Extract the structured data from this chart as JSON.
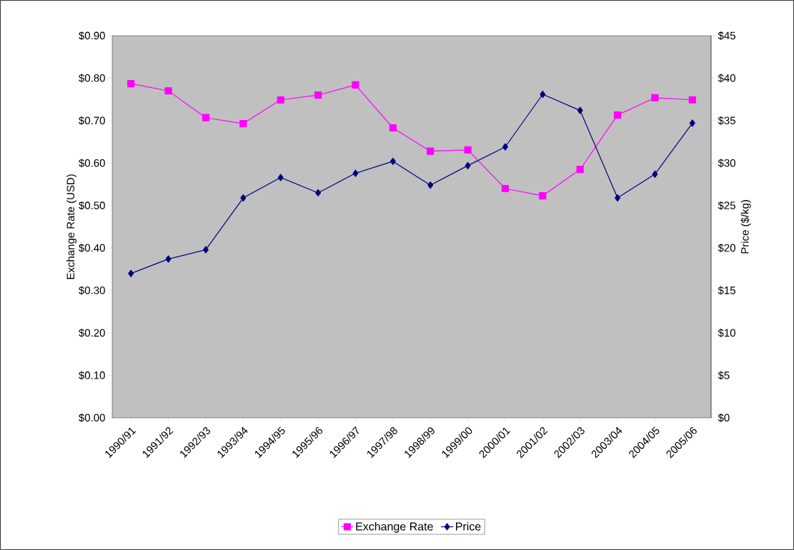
{
  "chart_data": {
    "type": "line",
    "categories": [
      "1990/91",
      "1991/92",
      "1992/93",
      "1993/94",
      "1994/95",
      "1995/96",
      "1996/97",
      "1997/98",
      "1998/99",
      "1999/00",
      "2000/01",
      "2001/02",
      "2002/03",
      "2003/04",
      "2004/05",
      "2005/06"
    ],
    "series": [
      {
        "name": "Exchange Rate",
        "color": "#ff00ff",
        "marker": "square",
        "values": [
          0.787,
          0.77,
          0.707,
          0.693,
          0.749,
          0.76,
          0.784,
          0.683,
          0.628,
          0.631,
          0.54,
          0.523,
          0.585,
          0.713,
          0.754,
          0.749
        ]
      },
      {
        "name": "Price",
        "color": "#000080",
        "marker": "diamond",
        "axis": "y2",
        "values": [
          17.0,
          18.7,
          19.8,
          25.9,
          28.3,
          26.5,
          28.8,
          30.2,
          27.4,
          29.7,
          31.9,
          38.1,
          36.2,
          25.9,
          28.7,
          34.7
        ]
      }
    ],
    "ylabel": "Exchange Rate (USD)",
    "y2label": "Price ($/kg)",
    "ylim": [
      0,
      0.9
    ],
    "yticks": [
      {
        "value": 0,
        "label": "$0.00"
      },
      {
        "value": 0.1,
        "label": "$0.10"
      },
      {
        "value": 0.2,
        "label": "$0.20"
      },
      {
        "value": 0.3,
        "label": "$0.30"
      },
      {
        "value": 0.4,
        "label": "$0.40"
      },
      {
        "value": 0.5,
        "label": "$0.50"
      },
      {
        "value": 0.6,
        "label": "$0.60"
      },
      {
        "value": 0.7,
        "label": "$0.70"
      },
      {
        "value": 0.8,
        "label": "$0.80"
      },
      {
        "value": 0.9,
        "label": "$0.90"
      }
    ],
    "y2lim": [
      0,
      45
    ],
    "y2ticks": [
      {
        "value": 0,
        "label": "$0"
      },
      {
        "value": 5,
        "label": "$5"
      },
      {
        "value": 10,
        "label": "$10"
      },
      {
        "value": 15,
        "label": "$15"
      },
      {
        "value": 20,
        "label": "$20"
      },
      {
        "value": 25,
        "label": "$25"
      },
      {
        "value": 30,
        "label": "$30"
      },
      {
        "value": 35,
        "label": "$35"
      },
      {
        "value": 40,
        "label": "$40"
      },
      {
        "value": 45,
        "label": "$45"
      }
    ],
    "grid": false,
    "legend": "bottom",
    "line_style": "solid"
  }
}
